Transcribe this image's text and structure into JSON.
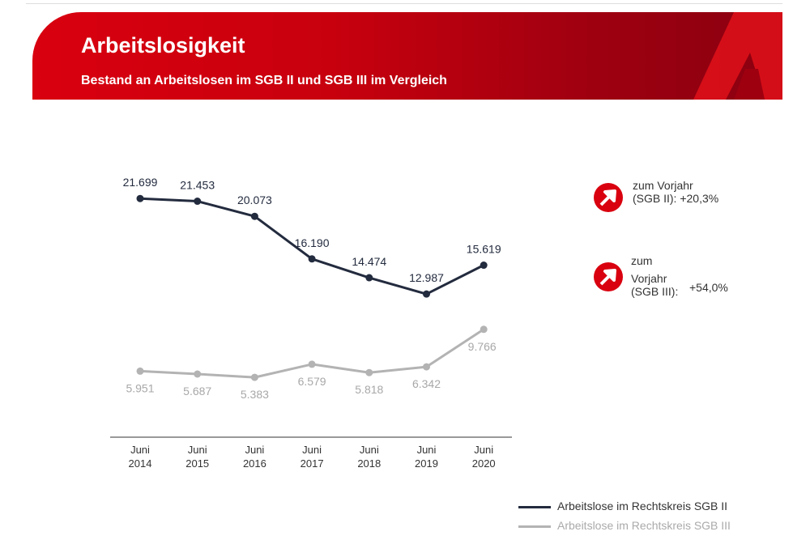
{
  "header": {
    "title": "Arbeitslosigkeit",
    "subtitle": "Bestand an Arbeitslosen im SGB II und SGB III im Vergleich"
  },
  "chart_data": {
    "type": "line",
    "categories": [
      "Juni 2014",
      "Juni 2015",
      "Juni 2016",
      "Juni 2017",
      "Juni 2018",
      "Juni 2019",
      "Juni 2020"
    ],
    "category_lines": [
      [
        "Juni",
        "2014"
      ],
      [
        "Juni",
        "2015"
      ],
      [
        "Juni",
        "2016"
      ],
      [
        "Juni",
        "2017"
      ],
      [
        "Juni",
        "2018"
      ],
      [
        "Juni",
        "2019"
      ],
      [
        "Juni",
        "2020"
      ]
    ],
    "ylim": [
      0,
      22000
    ],
    "grid": false,
    "legend_placement": "bottom-right",
    "series": [
      {
        "name": "Arbeitslose im Rechtskreis SGB II",
        "color": "#232b3e",
        "values": [
          21699,
          21453,
          20073,
          16190,
          14474,
          12987,
          15619
        ],
        "labels": [
          "21.699",
          "21.453",
          "20.073",
          "16.190",
          "14.474",
          "12.987",
          "15.619"
        ]
      },
      {
        "name": "Arbeitslose im Rechtskreis SGB III",
        "color": "#b3b3b3",
        "values": [
          5951,
          5687,
          5383,
          6579,
          5818,
          6342,
          9766
        ],
        "labels": [
          "5.951",
          "5.687",
          "5.383",
          "6.579",
          "5.818",
          "6.342",
          "9.766"
        ]
      }
    ]
  },
  "annotations": [
    {
      "icon": "arrow-up-right-icon",
      "lines": [
        "zum Vorjahr",
        "(SGB II):"
      ],
      "value": "+20,3%"
    },
    {
      "icon": "arrow-up-right-icon",
      "lines": [
        "zum",
        "Vorjahr",
        "(SGB III):"
      ],
      "value": "+54,0%"
    }
  ],
  "colors": {
    "brand": "#d9000f"
  }
}
